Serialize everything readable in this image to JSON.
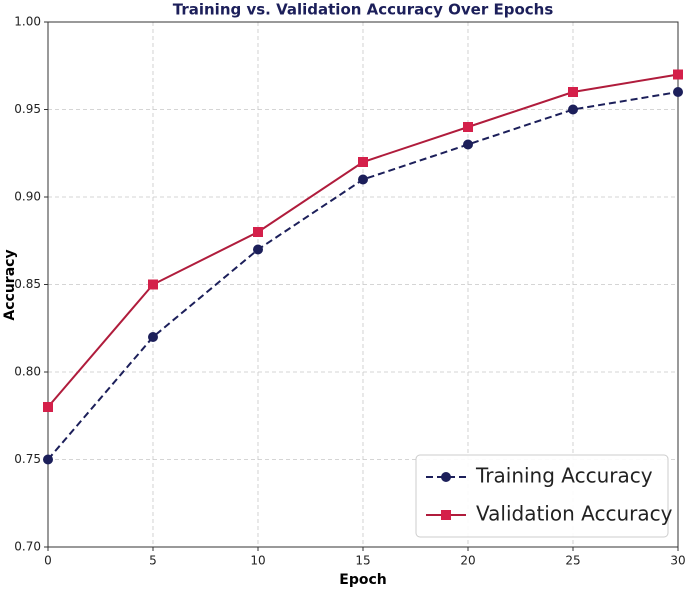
{
  "chart_data": {
    "type": "line",
    "title": "Training vs. Validation Accuracy Over Epochs",
    "xlabel": "Epoch",
    "ylabel": "Accuracy",
    "x": [
      0,
      5,
      10,
      15,
      20,
      25,
      30
    ],
    "series": [
      {
        "name": "Training Accuracy",
        "color": "#1c1f5a",
        "linestyle": "dashed",
        "marker": "circle",
        "values": [
          0.75,
          0.82,
          0.87,
          0.91,
          0.93,
          0.95,
          0.96
        ]
      },
      {
        "name": "Validation Accuracy",
        "color": "#b01c3c",
        "linestyle": "solid",
        "marker": "square",
        "values": [
          0.78,
          0.85,
          0.88,
          0.92,
          0.94,
          0.96,
          0.97
        ]
      }
    ],
    "xlim": [
      0,
      30
    ],
    "xticks": [
      0,
      5,
      10,
      15,
      20,
      25,
      30
    ],
    "ylim": [
      0.7,
      1.0
    ],
    "yticks": [
      {
        "value": 0.7,
        "label": "0.70"
      },
      0.75,
      {
        "value": 0.8,
        "label": "0.80"
      },
      0.85,
      {
        "value": 0.9,
        "label": "0.90"
      },
      0.95,
      {
        "value": 1.0,
        "label": "1.00"
      }
    ],
    "grid": true,
    "legend": "lower right"
  }
}
